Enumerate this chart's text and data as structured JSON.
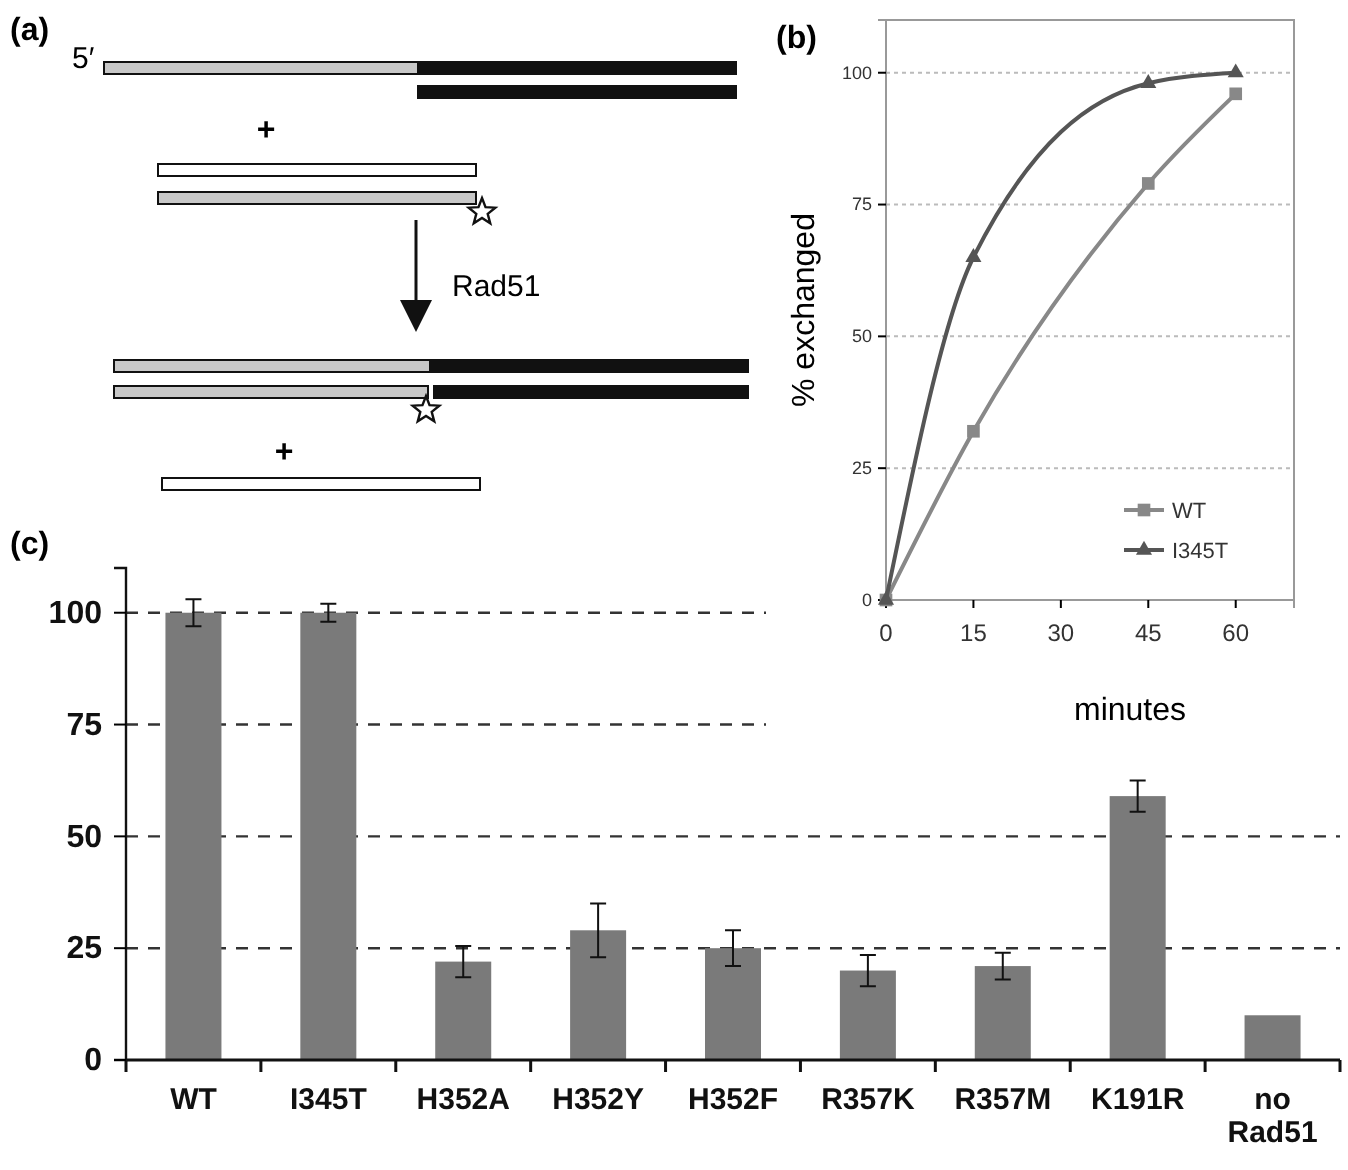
{
  "chart_data": [
    {
      "type": "other",
      "title": "(a)",
      "annotations": [
        "5′",
        "+",
        "Rad51",
        "+"
      ]
    },
    {
      "type": "line",
      "title": "(b)",
      "xlabel": "minutes",
      "ylabel": "% exchanged",
      "xlim": [
        0,
        70
      ],
      "xticks": [
        0,
        15,
        30,
        45,
        60
      ],
      "ylim": [
        0,
        110
      ],
      "yticks": [
        0,
        25,
        50,
        75,
        100
      ],
      "grid": "y",
      "legend": "bottom right",
      "x": [
        0,
        15,
        45,
        60
      ],
      "series": [
        {
          "name": "WT",
          "color": "#888888",
          "marker": "square",
          "values": [
            0,
            32,
            79,
            96
          ]
        },
        {
          "name": "I345T",
          "color": "#555555",
          "marker": "triangle",
          "values": [
            0,
            65,
            98,
            100
          ]
        }
      ]
    },
    {
      "type": "bar",
      "title": "(c)",
      "categories": [
        "WT",
        "I345T",
        "H352A",
        "H352Y",
        "H352F",
        "R357K",
        "R357M",
        "K191R",
        "no Rad51"
      ],
      "values": [
        100,
        100,
        22,
        29,
        25,
        20,
        21,
        59,
        10
      ],
      "errors": [
        3,
        2,
        3.5,
        6,
        4,
        3.5,
        3,
        3.5,
        null
      ],
      "color": "#7a7a7a",
      "ylim": [
        0,
        110
      ],
      "yticks": [
        0,
        25,
        50,
        75,
        100
      ],
      "grid": "y"
    }
  ]
}
